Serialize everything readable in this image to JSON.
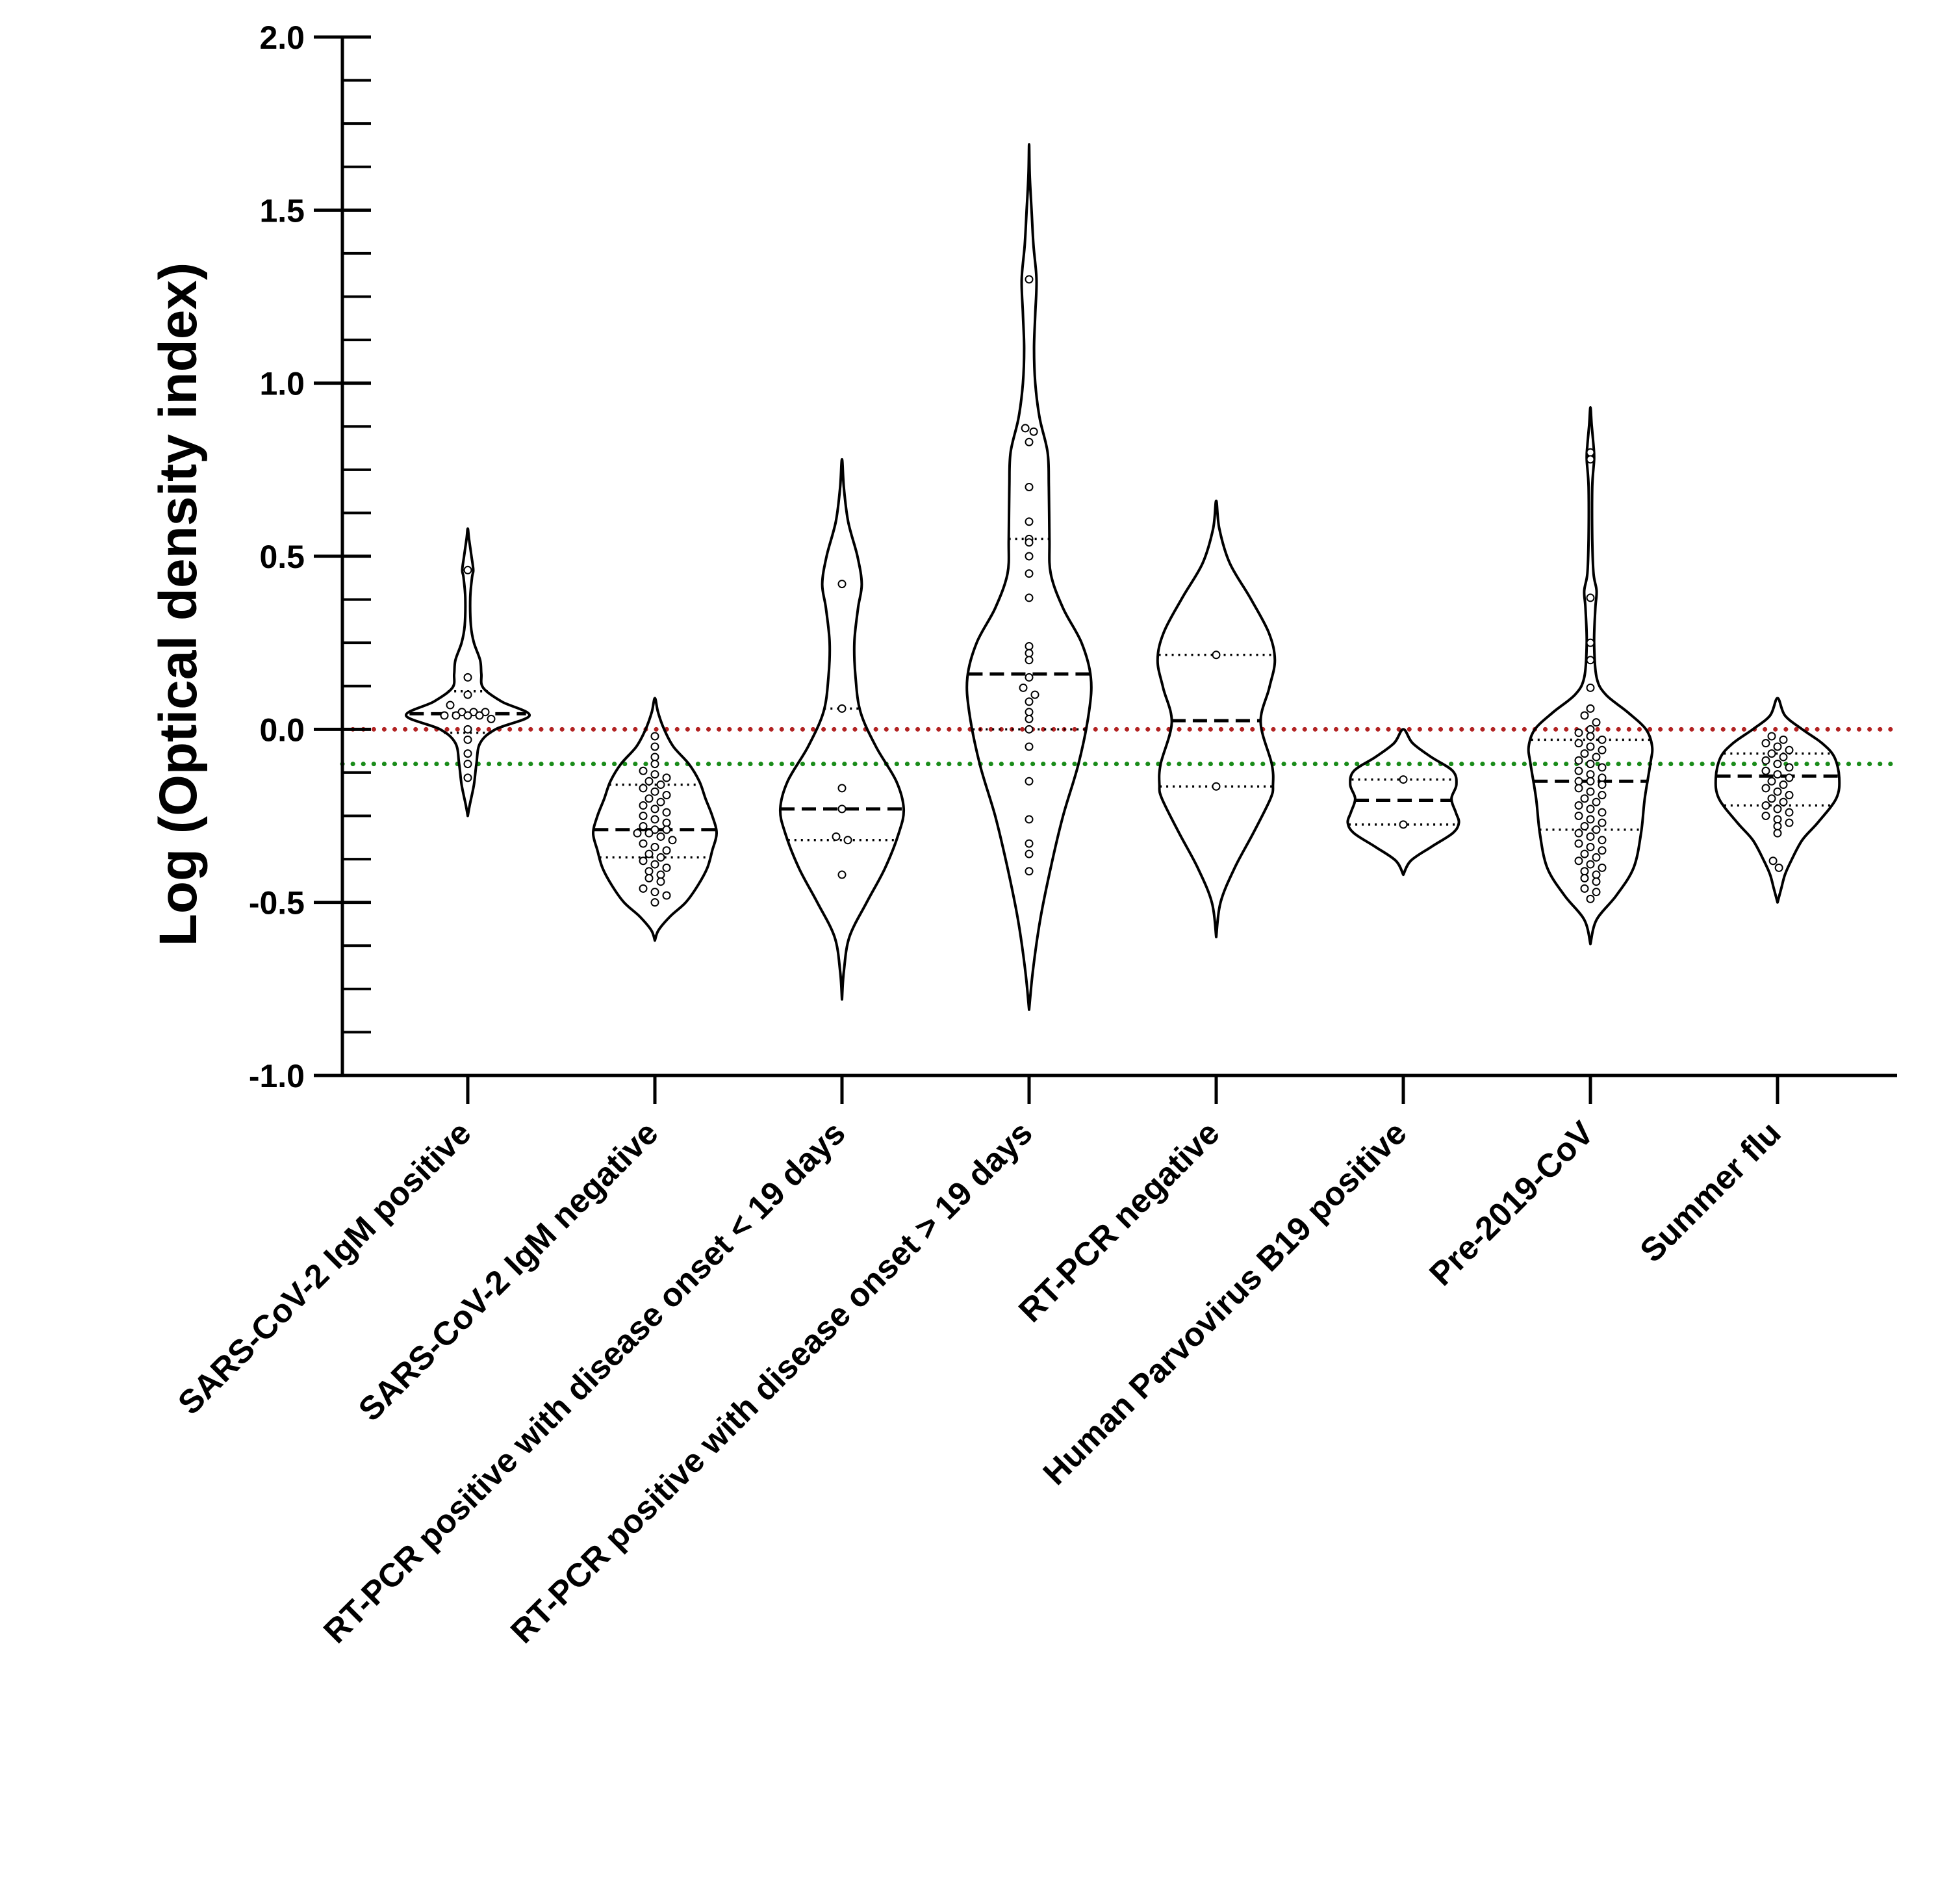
{
  "chart_data": {
    "type": "violin",
    "title": "",
    "xlabel": "",
    "ylabel": "Log (Optical density index)",
    "ylim": [
      -1.0,
      2.0
    ],
    "yticks": [
      -1.0,
      -0.5,
      0.0,
      0.5,
      1.0,
      1.5,
      2.0
    ],
    "ytick_labels": [
      "-1.0",
      "-0.5",
      "0.0",
      "0.5",
      "1.0",
      "1.5",
      "2.0"
    ],
    "y_minor_step": 0.125,
    "reference_lines": [
      {
        "name": "cutoff-red",
        "value": 0.0,
        "color": "#b22222",
        "style": "dotted"
      },
      {
        "name": "cutoff-green",
        "value": -0.1,
        "color": "#1a8c1a",
        "style": "dotted"
      }
    ],
    "groups": [
      {
        "label": "SARS-CoV-2 IgM positive",
        "min": -0.25,
        "max": 0.58,
        "median": 0.045,
        "q1": -0.01,
        "q3": 0.11,
        "density": [
          [
            -0.25,
            0.0
          ],
          [
            -0.22,
            0.03
          ],
          [
            -0.16,
            0.1
          ],
          [
            -0.1,
            0.14
          ],
          [
            -0.04,
            0.2
          ],
          [
            0.0,
            0.45
          ],
          [
            0.04,
            1.0
          ],
          [
            0.08,
            0.55
          ],
          [
            0.12,
            0.25
          ],
          [
            0.16,
            0.22
          ],
          [
            0.2,
            0.2
          ],
          [
            0.25,
            0.1
          ],
          [
            0.3,
            0.05
          ],
          [
            0.38,
            0.04
          ],
          [
            0.44,
            0.07
          ],
          [
            0.46,
            0.09
          ],
          [
            0.5,
            0.06
          ],
          [
            0.55,
            0.02
          ],
          [
            0.58,
            0.0
          ]
        ],
        "points": [
          0.46,
          0.15,
          0.1,
          0.07,
          0.05,
          0.05,
          0.05,
          0.04,
          0.04,
          0.04,
          0.04,
          0.03,
          0.0,
          -0.03,
          -0.07,
          -0.1,
          -0.14
        ]
      },
      {
        "label": "SARS-CoV-2 IgM negative",
        "min": -0.61,
        "max": 0.09,
        "median": -0.29,
        "q1": -0.37,
        "q3": -0.16,
        "density": [
          [
            -0.61,
            0.0
          ],
          [
            -0.58,
            0.06
          ],
          [
            -0.54,
            0.25
          ],
          [
            -0.5,
            0.5
          ],
          [
            -0.45,
            0.7
          ],
          [
            -0.4,
            0.85
          ],
          [
            -0.35,
            0.93
          ],
          [
            -0.3,
            1.0
          ],
          [
            -0.25,
            0.93
          ],
          [
            -0.2,
            0.82
          ],
          [
            -0.15,
            0.72
          ],
          [
            -0.1,
            0.55
          ],
          [
            -0.05,
            0.3
          ],
          [
            0.0,
            0.15
          ],
          [
            0.05,
            0.05
          ],
          [
            0.09,
            0.0
          ]
        ],
        "points": [
          -0.02,
          -0.05,
          -0.08,
          -0.1,
          -0.12,
          -0.13,
          -0.14,
          -0.15,
          -0.16,
          -0.17,
          -0.18,
          -0.19,
          -0.2,
          -0.21,
          -0.22,
          -0.23,
          -0.24,
          -0.25,
          -0.26,
          -0.27,
          -0.28,
          -0.29,
          -0.29,
          -0.3,
          -0.3,
          -0.31,
          -0.32,
          -0.33,
          -0.34,
          -0.35,
          -0.36,
          -0.37,
          -0.38,
          -0.39,
          -0.4,
          -0.41,
          -0.42,
          -0.43,
          -0.44,
          -0.46,
          -0.47,
          -0.48,
          -0.5
        ]
      },
      {
        "label": "RT-PCR positive with disease onset < 19 days",
        "min": -0.78,
        "max": 0.78,
        "median": -0.23,
        "q1": -0.32,
        "q3": 0.06,
        "density": [
          [
            -0.78,
            0.0
          ],
          [
            -0.7,
            0.03
          ],
          [
            -0.6,
            0.12
          ],
          [
            -0.5,
            0.4
          ],
          [
            -0.4,
            0.7
          ],
          [
            -0.3,
            0.92
          ],
          [
            -0.23,
            1.0
          ],
          [
            -0.15,
            0.88
          ],
          [
            -0.05,
            0.55
          ],
          [
            0.05,
            0.3
          ],
          [
            0.15,
            0.22
          ],
          [
            0.25,
            0.2
          ],
          [
            0.35,
            0.26
          ],
          [
            0.42,
            0.32
          ],
          [
            0.5,
            0.25
          ],
          [
            0.6,
            0.1
          ],
          [
            0.7,
            0.03
          ],
          [
            0.78,
            0.0
          ]
        ],
        "points": [
          0.42,
          0.06,
          -0.17,
          -0.23,
          -0.31,
          -0.32,
          -0.42
        ]
      },
      {
        "label": "RT-PCR positive with disease onset > 19 days",
        "min": -0.81,
        "max": 1.69,
        "median": 0.16,
        "q1": 0.0,
        "q3": 0.55,
        "density": [
          [
            -0.81,
            0.0
          ],
          [
            -0.7,
            0.06
          ],
          [
            -0.55,
            0.18
          ],
          [
            -0.4,
            0.35
          ],
          [
            -0.25,
            0.55
          ],
          [
            -0.1,
            0.8
          ],
          [
            0.05,
            0.97
          ],
          [
            0.15,
            1.0
          ],
          [
            0.25,
            0.85
          ],
          [
            0.35,
            0.55
          ],
          [
            0.45,
            0.35
          ],
          [
            0.55,
            0.33
          ],
          [
            0.7,
            0.32
          ],
          [
            0.8,
            0.3
          ],
          [
            0.9,
            0.17
          ],
          [
            1.0,
            0.1
          ],
          [
            1.1,
            0.08
          ],
          [
            1.2,
            0.1
          ],
          [
            1.3,
            0.12
          ],
          [
            1.4,
            0.07
          ],
          [
            1.5,
            0.04
          ],
          [
            1.6,
            0.01
          ],
          [
            1.69,
            0.0
          ]
        ],
        "points": [
          1.3,
          0.87,
          0.86,
          0.83,
          0.7,
          0.6,
          0.55,
          0.54,
          0.5,
          0.45,
          0.38,
          0.24,
          0.22,
          0.2,
          0.15,
          0.12,
          0.1,
          0.08,
          0.05,
          0.03,
          0.0,
          -0.05,
          -0.15,
          -0.26,
          -0.33,
          -0.36,
          -0.41
        ]
      },
      {
        "label": "RT-PCR negative",
        "min": -0.6,
        "max": 0.66,
        "median": 0.025,
        "q1": -0.165,
        "q3": 0.215,
        "density": [
          [
            -0.6,
            0.0
          ],
          [
            -0.5,
            0.07
          ],
          [
            -0.4,
            0.3
          ],
          [
            -0.3,
            0.6
          ],
          [
            -0.2,
            0.88
          ],
          [
            -0.16,
            0.92
          ],
          [
            -0.1,
            0.9
          ],
          [
            0.02,
            0.72
          ],
          [
            0.12,
            0.86
          ],
          [
            0.2,
            0.95
          ],
          [
            0.28,
            0.85
          ],
          [
            0.38,
            0.55
          ],
          [
            0.48,
            0.22
          ],
          [
            0.58,
            0.05
          ],
          [
            0.66,
            0.0
          ]
        ],
        "points": [
          0.215,
          -0.165
        ]
      },
      {
        "label": "Human Parvovirus B19 positive",
        "min": -0.42,
        "max": 0.0,
        "median": -0.205,
        "q1": -0.275,
        "q3": -0.145,
        "density": [
          [
            -0.42,
            0.0
          ],
          [
            -0.38,
            0.12
          ],
          [
            -0.34,
            0.45
          ],
          [
            -0.3,
            0.8
          ],
          [
            -0.27,
            0.9
          ],
          [
            -0.24,
            0.85
          ],
          [
            -0.2,
            0.78
          ],
          [
            -0.16,
            0.86
          ],
          [
            -0.12,
            0.8
          ],
          [
            -0.08,
            0.45
          ],
          [
            -0.04,
            0.15
          ],
          [
            0.0,
            0.0
          ]
        ],
        "points": [
          -0.145,
          -0.275
        ]
      },
      {
        "label": "Pre-2019-CoV",
        "min": -0.62,
        "max": 0.93,
        "median": -0.15,
        "q1": -0.29,
        "q3": -0.03,
        "density": [
          [
            -0.62,
            0.0
          ],
          [
            -0.55,
            0.1
          ],
          [
            -0.48,
            0.42
          ],
          [
            -0.4,
            0.7
          ],
          [
            -0.3,
            0.82
          ],
          [
            -0.2,
            0.88
          ],
          [
            -0.1,
            0.97
          ],
          [
            -0.05,
            1.0
          ],
          [
            0.0,
            0.9
          ],
          [
            0.05,
            0.6
          ],
          [
            0.1,
            0.25
          ],
          [
            0.15,
            0.1
          ],
          [
            0.25,
            0.06
          ],
          [
            0.35,
            0.08
          ],
          [
            0.4,
            0.1
          ],
          [
            0.45,
            0.05
          ],
          [
            0.55,
            0.03
          ],
          [
            0.7,
            0.03
          ],
          [
            0.78,
            0.06
          ],
          [
            0.82,
            0.05
          ],
          [
            0.88,
            0.02
          ],
          [
            0.93,
            0.0
          ]
        ],
        "points": [
          0.8,
          0.78,
          0.38,
          0.25,
          0.2,
          0.12,
          0.06,
          0.04,
          0.02,
          0.0,
          -0.01,
          -0.02,
          -0.03,
          -0.04,
          -0.05,
          -0.06,
          -0.07,
          -0.08,
          -0.09,
          -0.1,
          -0.11,
          -0.12,
          -0.13,
          -0.14,
          -0.15,
          -0.15,
          -0.16,
          -0.17,
          -0.18,
          -0.19,
          -0.2,
          -0.21,
          -0.22,
          -0.23,
          -0.24,
          -0.25,
          -0.26,
          -0.27,
          -0.28,
          -0.29,
          -0.3,
          -0.31,
          -0.32,
          -0.33,
          -0.34,
          -0.35,
          -0.36,
          -0.37,
          -0.38,
          -0.39,
          -0.4,
          -0.41,
          -0.42,
          -0.43,
          -0.44,
          -0.46,
          -0.47,
          -0.49
        ]
      },
      {
        "label": "Summer flu",
        "min": -0.5,
        "max": 0.09,
        "median": -0.135,
        "q1": -0.22,
        "q3": -0.07,
        "density": [
          [
            -0.5,
            0.0
          ],
          [
            -0.46,
            0.06
          ],
          [
            -0.42,
            0.12
          ],
          [
            -0.38,
            0.22
          ],
          [
            -0.32,
            0.4
          ],
          [
            -0.27,
            0.65
          ],
          [
            -0.2,
            0.95
          ],
          [
            -0.14,
            1.0
          ],
          [
            -0.08,
            0.92
          ],
          [
            -0.04,
            0.72
          ],
          [
            0.0,
            0.4
          ],
          [
            0.04,
            0.12
          ],
          [
            0.09,
            0.0
          ]
        ],
        "points": [
          -0.02,
          -0.03,
          -0.04,
          -0.05,
          -0.06,
          -0.07,
          -0.08,
          -0.09,
          -0.1,
          -0.11,
          -0.12,
          -0.13,
          -0.14,
          -0.15,
          -0.16,
          -0.17,
          -0.18,
          -0.19,
          -0.2,
          -0.21,
          -0.22,
          -0.23,
          -0.24,
          -0.25,
          -0.26,
          -0.27,
          -0.28,
          -0.3,
          -0.38,
          -0.4
        ]
      }
    ]
  }
}
